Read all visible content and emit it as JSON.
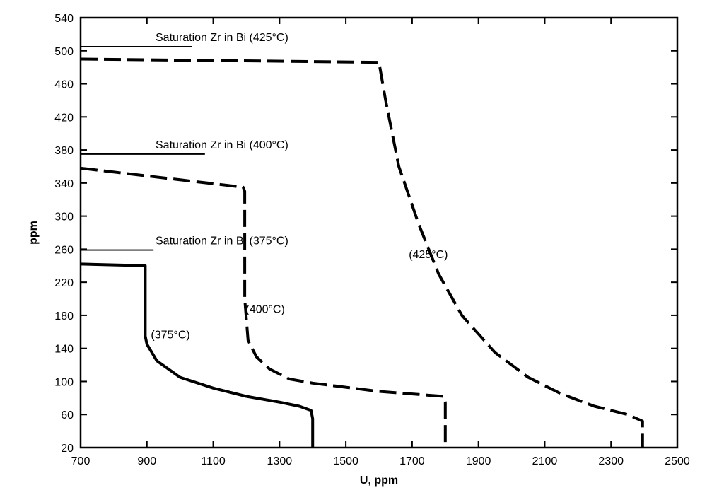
{
  "chart_data": {
    "type": "line",
    "title": "",
    "xlabel": "U, ppm",
    "ylabel": "ppm",
    "xlim": [
      700,
      2500
    ],
    "ylim": [
      20,
      540
    ],
    "x_ticks": [
      700,
      900,
      1100,
      1300,
      1500,
      1700,
      1900,
      2100,
      2300,
      2500
    ],
    "y_ticks": [
      20,
      60,
      100,
      140,
      180,
      220,
      260,
      300,
      340,
      380,
      420,
      460,
      500,
      540
    ],
    "grid": false,
    "series": [
      {
        "name": "(375°C)",
        "style": "solid",
        "x": [
          700,
          895,
          895,
          900,
          930,
          1000,
          1100,
          1200,
          1300,
          1360,
          1395,
          1400,
          1400
        ],
        "y": [
          242,
          240,
          155,
          145,
          125,
          105,
          92,
          82,
          75,
          70,
          65,
          55,
          20
        ]
      },
      {
        "name": "(400°C)",
        "style": "dashed",
        "x": [
          700,
          1190,
          1195,
          1195,
          1205,
          1230,
          1270,
          1330,
          1400,
          1600,
          1795,
          1800,
          1800
        ],
        "y": [
          358,
          335,
          330,
          200,
          150,
          130,
          115,
          103,
          98,
          88,
          82,
          75,
          20
        ]
      },
      {
        "name": "(425°C)",
        "style": "dashed",
        "x": [
          700,
          1600,
          1620,
          1660,
          1720,
          1780,
          1850,
          1950,
          2050,
          2150,
          2250,
          2350,
          2395,
          2395
        ],
        "y": [
          490,
          486,
          440,
          360,
          290,
          230,
          180,
          135,
          105,
          85,
          70,
          60,
          52,
          20
        ]
      }
    ],
    "saturation_lines": [
      {
        "label": "Saturation Zr in Bi (425°C)",
        "y": 505,
        "x_end": 1035
      },
      {
        "label": "Saturation Zr in Bi (400°C)",
        "y": 375,
        "x_end": 1075
      },
      {
        "label": "Saturation Zr in Bi (375°C)",
        "y": 259,
        "x_end": 920
      }
    ],
    "curve_labels": [
      {
        "text": "(375°C)",
        "x": 912,
        "y": 152
      },
      {
        "text": "(400°C)",
        "x": 1198,
        "y": 183
      },
      {
        "text": "(425°C)",
        "x": 1690,
        "y": 249
      }
    ]
  }
}
